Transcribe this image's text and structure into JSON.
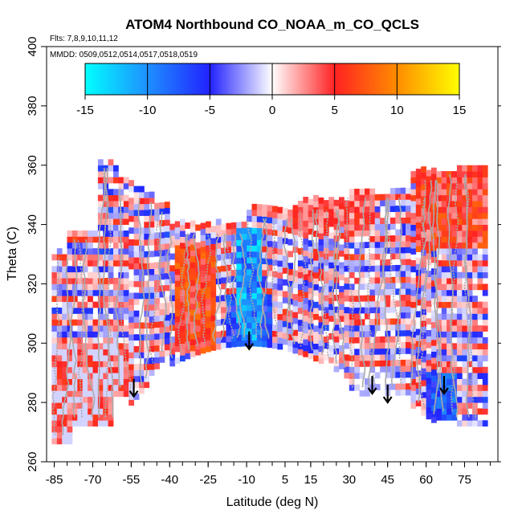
{
  "chart_data": {
    "type": "heatmap",
    "title": "ATOM4 Northbound CO_NOAA_m_CO_QCLS",
    "subtitle_flights": "Flts: 7,8,9,10,11,12",
    "subtitle_dates": "MMDD: 0509,0512,0514,0517,0518,0519",
    "xlabel": "Latitude (deg N)",
    "ylabel": "Theta (C)",
    "xlim": [
      -88,
      88
    ],
    "ylim": [
      260,
      400
    ],
    "x_ticks": [
      -85,
      -70,
      -55,
      -40,
      -25,
      -10,
      5,
      15,
      30,
      45,
      60,
      75
    ],
    "x_tick_labels": [
      "-85",
      "-70",
      "-55",
      "-40",
      "-25",
      "-10",
      "5",
      "15",
      "30",
      "45",
      "60",
      "75"
    ],
    "y_ticks": [
      260,
      280,
      300,
      320,
      340,
      360,
      380,
      400
    ],
    "y_tick_labels": [
      "260",
      "280",
      "300",
      "320",
      "340",
      "360",
      "380",
      "400"
    ],
    "colorbar": {
      "range": [
        -15,
        15
      ],
      "ticks": [
        -15,
        -10,
        -5,
        0,
        5,
        10,
        15
      ],
      "tick_labels": [
        "-15",
        "-10",
        "-5",
        "0",
        "5",
        "10",
        "15"
      ],
      "colors": [
        "#00ffff",
        "#1e90ff",
        "#2222ff",
        "#ffffff",
        "#ff2222",
        "#ff8c00",
        "#ffff00"
      ]
    },
    "profile_color": "#aaaaaa",
    "arrows_latitude": [
      -54,
      -9,
      39,
      45,
      67
    ],
    "arrows_theta_tip": [
      282,
      298,
      283,
      280,
      283
    ]
  }
}
